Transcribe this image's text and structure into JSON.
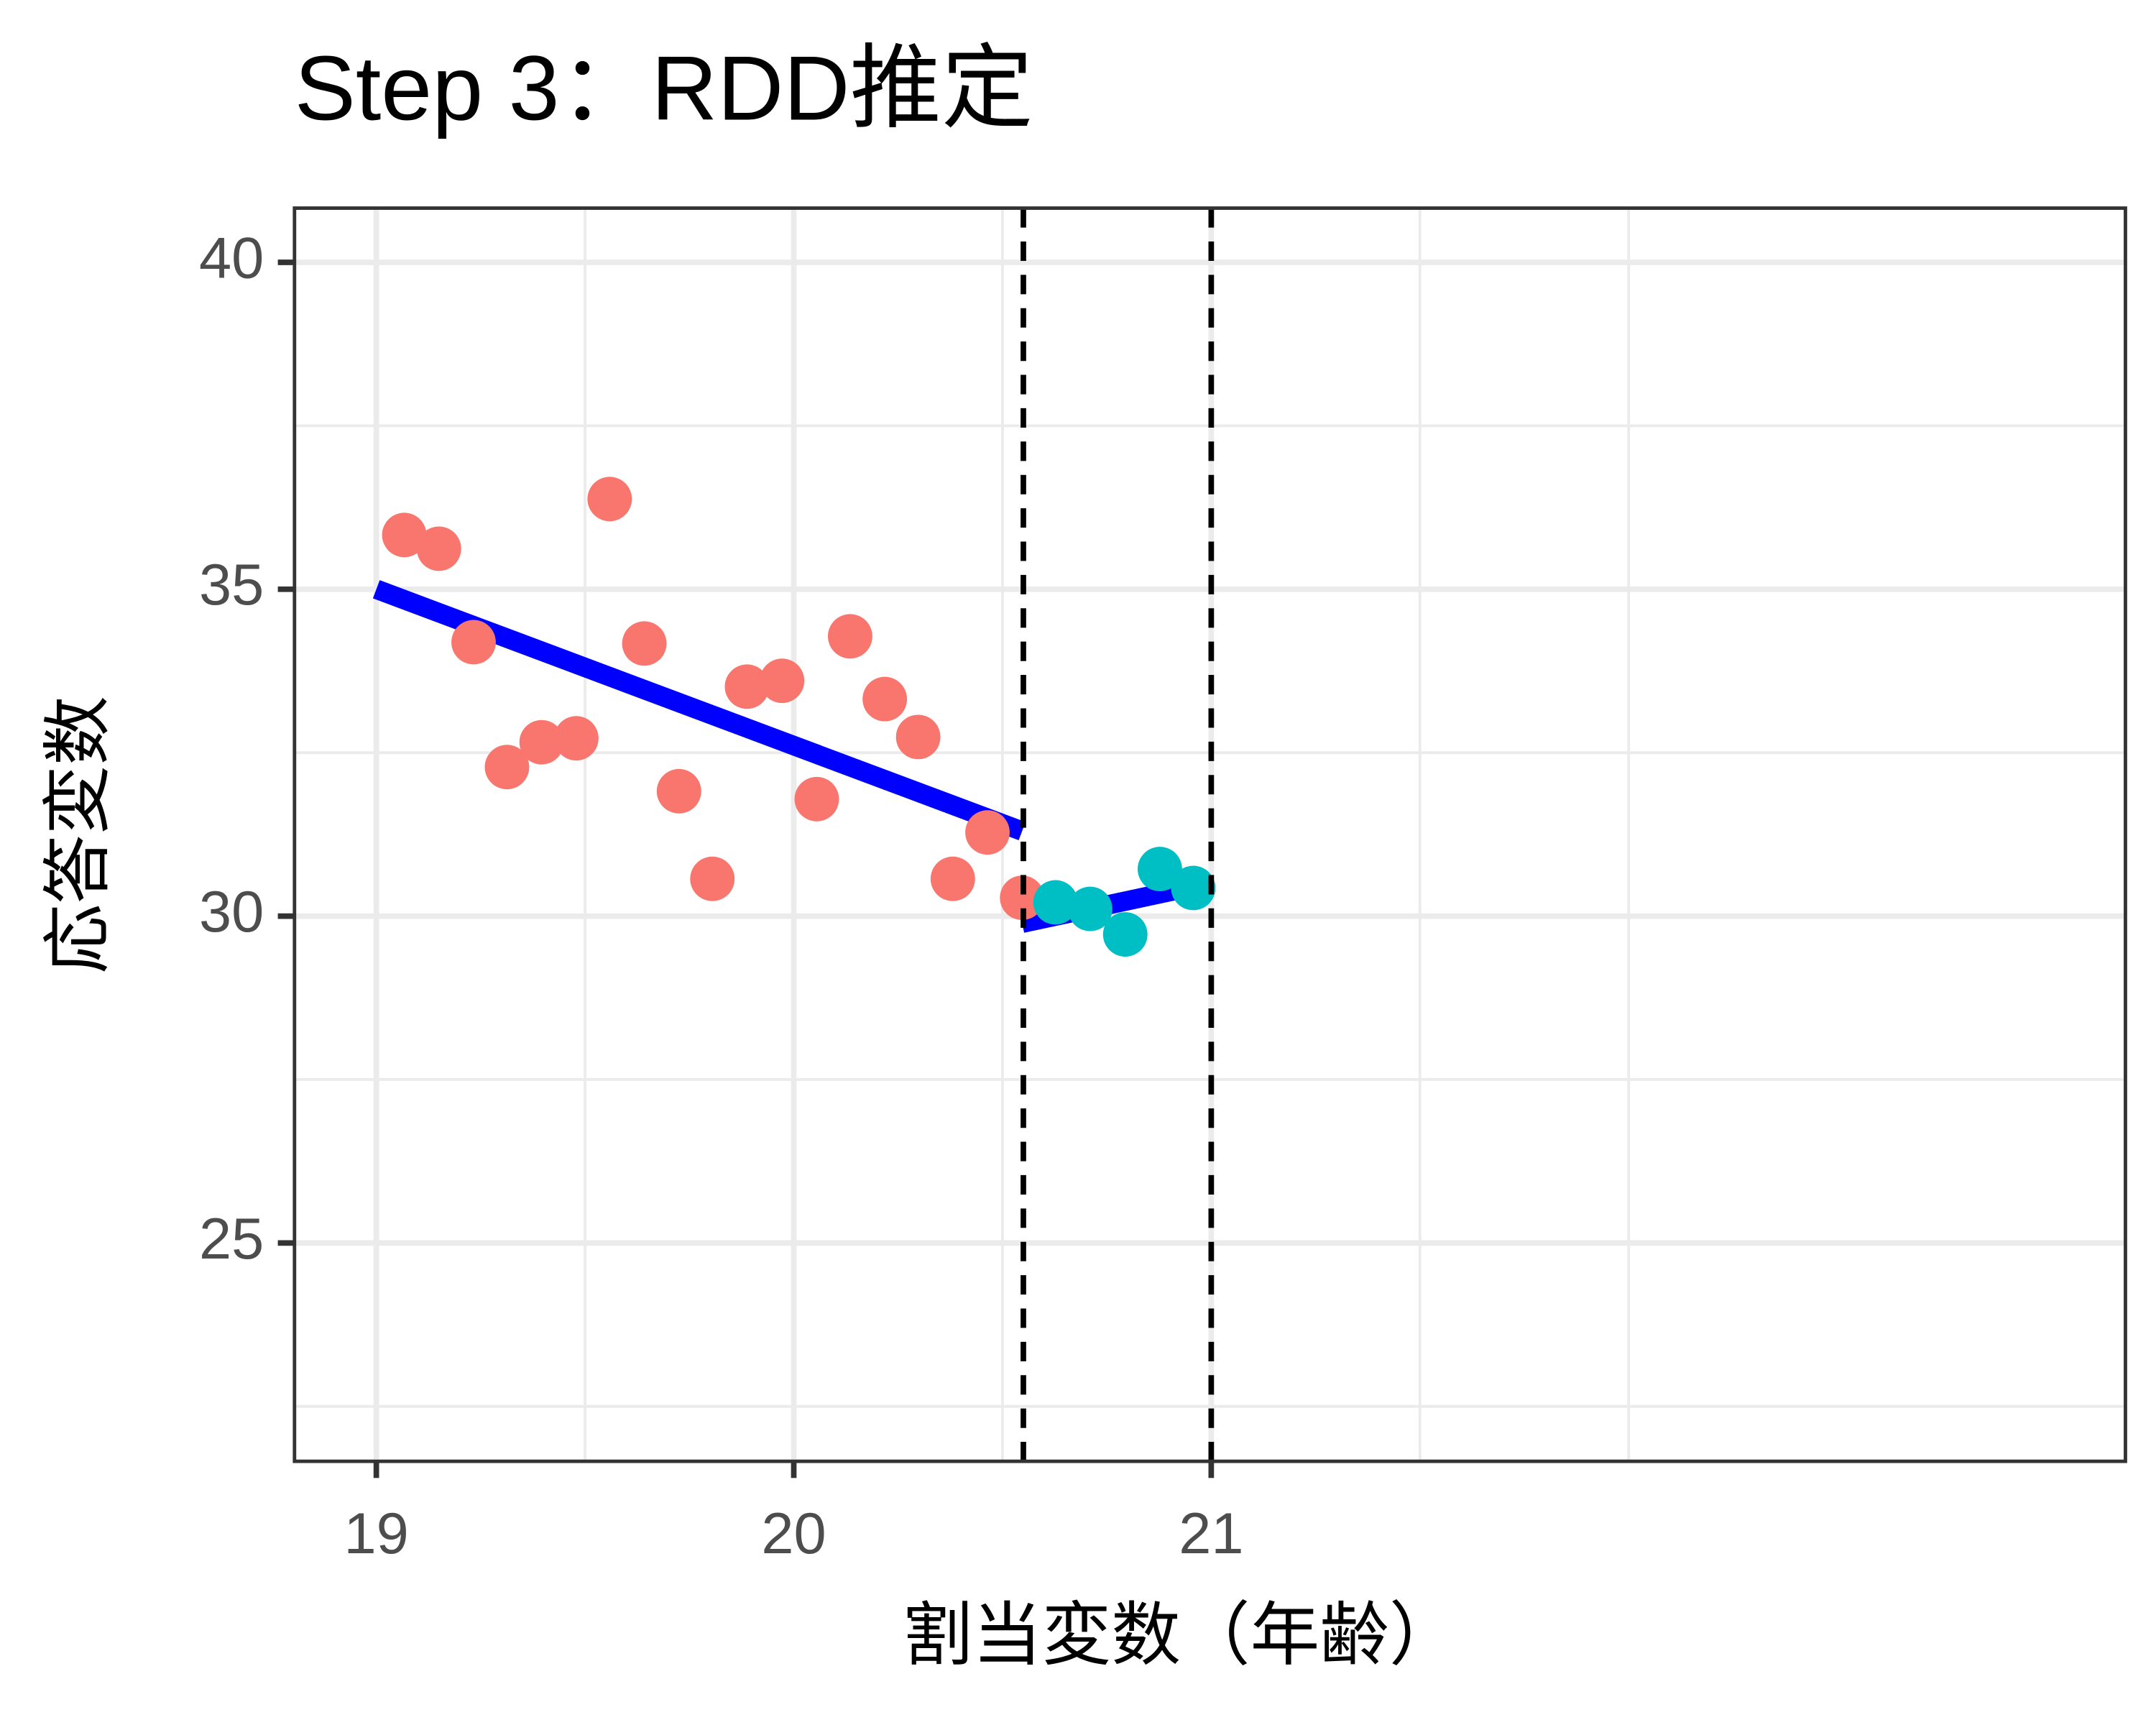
{
  "chart_data": {
    "type": "scatter",
    "title": "Step 3：RDD推定",
    "x_label": "割当変数（年齢）",
    "y_label": "応答変数",
    "xlim": [
      18.804,
      23.19
    ],
    "ylim": [
      21.66,
      40.83
    ],
    "xticks": [
      19,
      20,
      21
    ],
    "yticks": [
      25,
      30,
      35,
      40
    ],
    "x_minor": [
      19.5,
      20.5,
      21.5,
      22
    ],
    "y_minor": [
      22.5,
      27.5,
      32.5,
      37.5
    ],
    "grid": true,
    "vlines": [
      20.55,
      21
    ],
    "series": [
      {
        "color": "#f8766d",
        "x": [
          19.067,
          19.15,
          19.233,
          19.313,
          19.396,
          19.479,
          19.559,
          19.642,
          19.725,
          19.805,
          19.888,
          19.972,
          20.055,
          20.135,
          20.218,
          20.298,
          20.381,
          20.464,
          20.547
        ],
        "values": [
          35.83,
          35.62,
          34.19,
          32.28,
          32.66,
          32.72,
          36.38,
          34.17,
          31.91,
          30.57,
          33.51,
          33.6,
          31.79,
          34.28,
          33.32,
          32.74,
          30.57,
          31.28,
          30.28
        ]
      },
      {
        "color": "#00bfc4",
        "x": [
          20.627,
          20.71,
          20.794,
          20.877,
          20.957
        ],
        "values": [
          30.21,
          30.11,
          29.72,
          30.72,
          30.43
        ]
      }
    ],
    "fit_lines": [
      {
        "color": "#0000ff",
        "x": [
          19,
          20.547
        ],
        "values": [
          35.0,
          31.3
        ]
      },
      {
        "color": "#0000ff",
        "x": [
          20.547,
          21
        ],
        "values": [
          29.89,
          30.51
        ]
      }
    ]
  }
}
